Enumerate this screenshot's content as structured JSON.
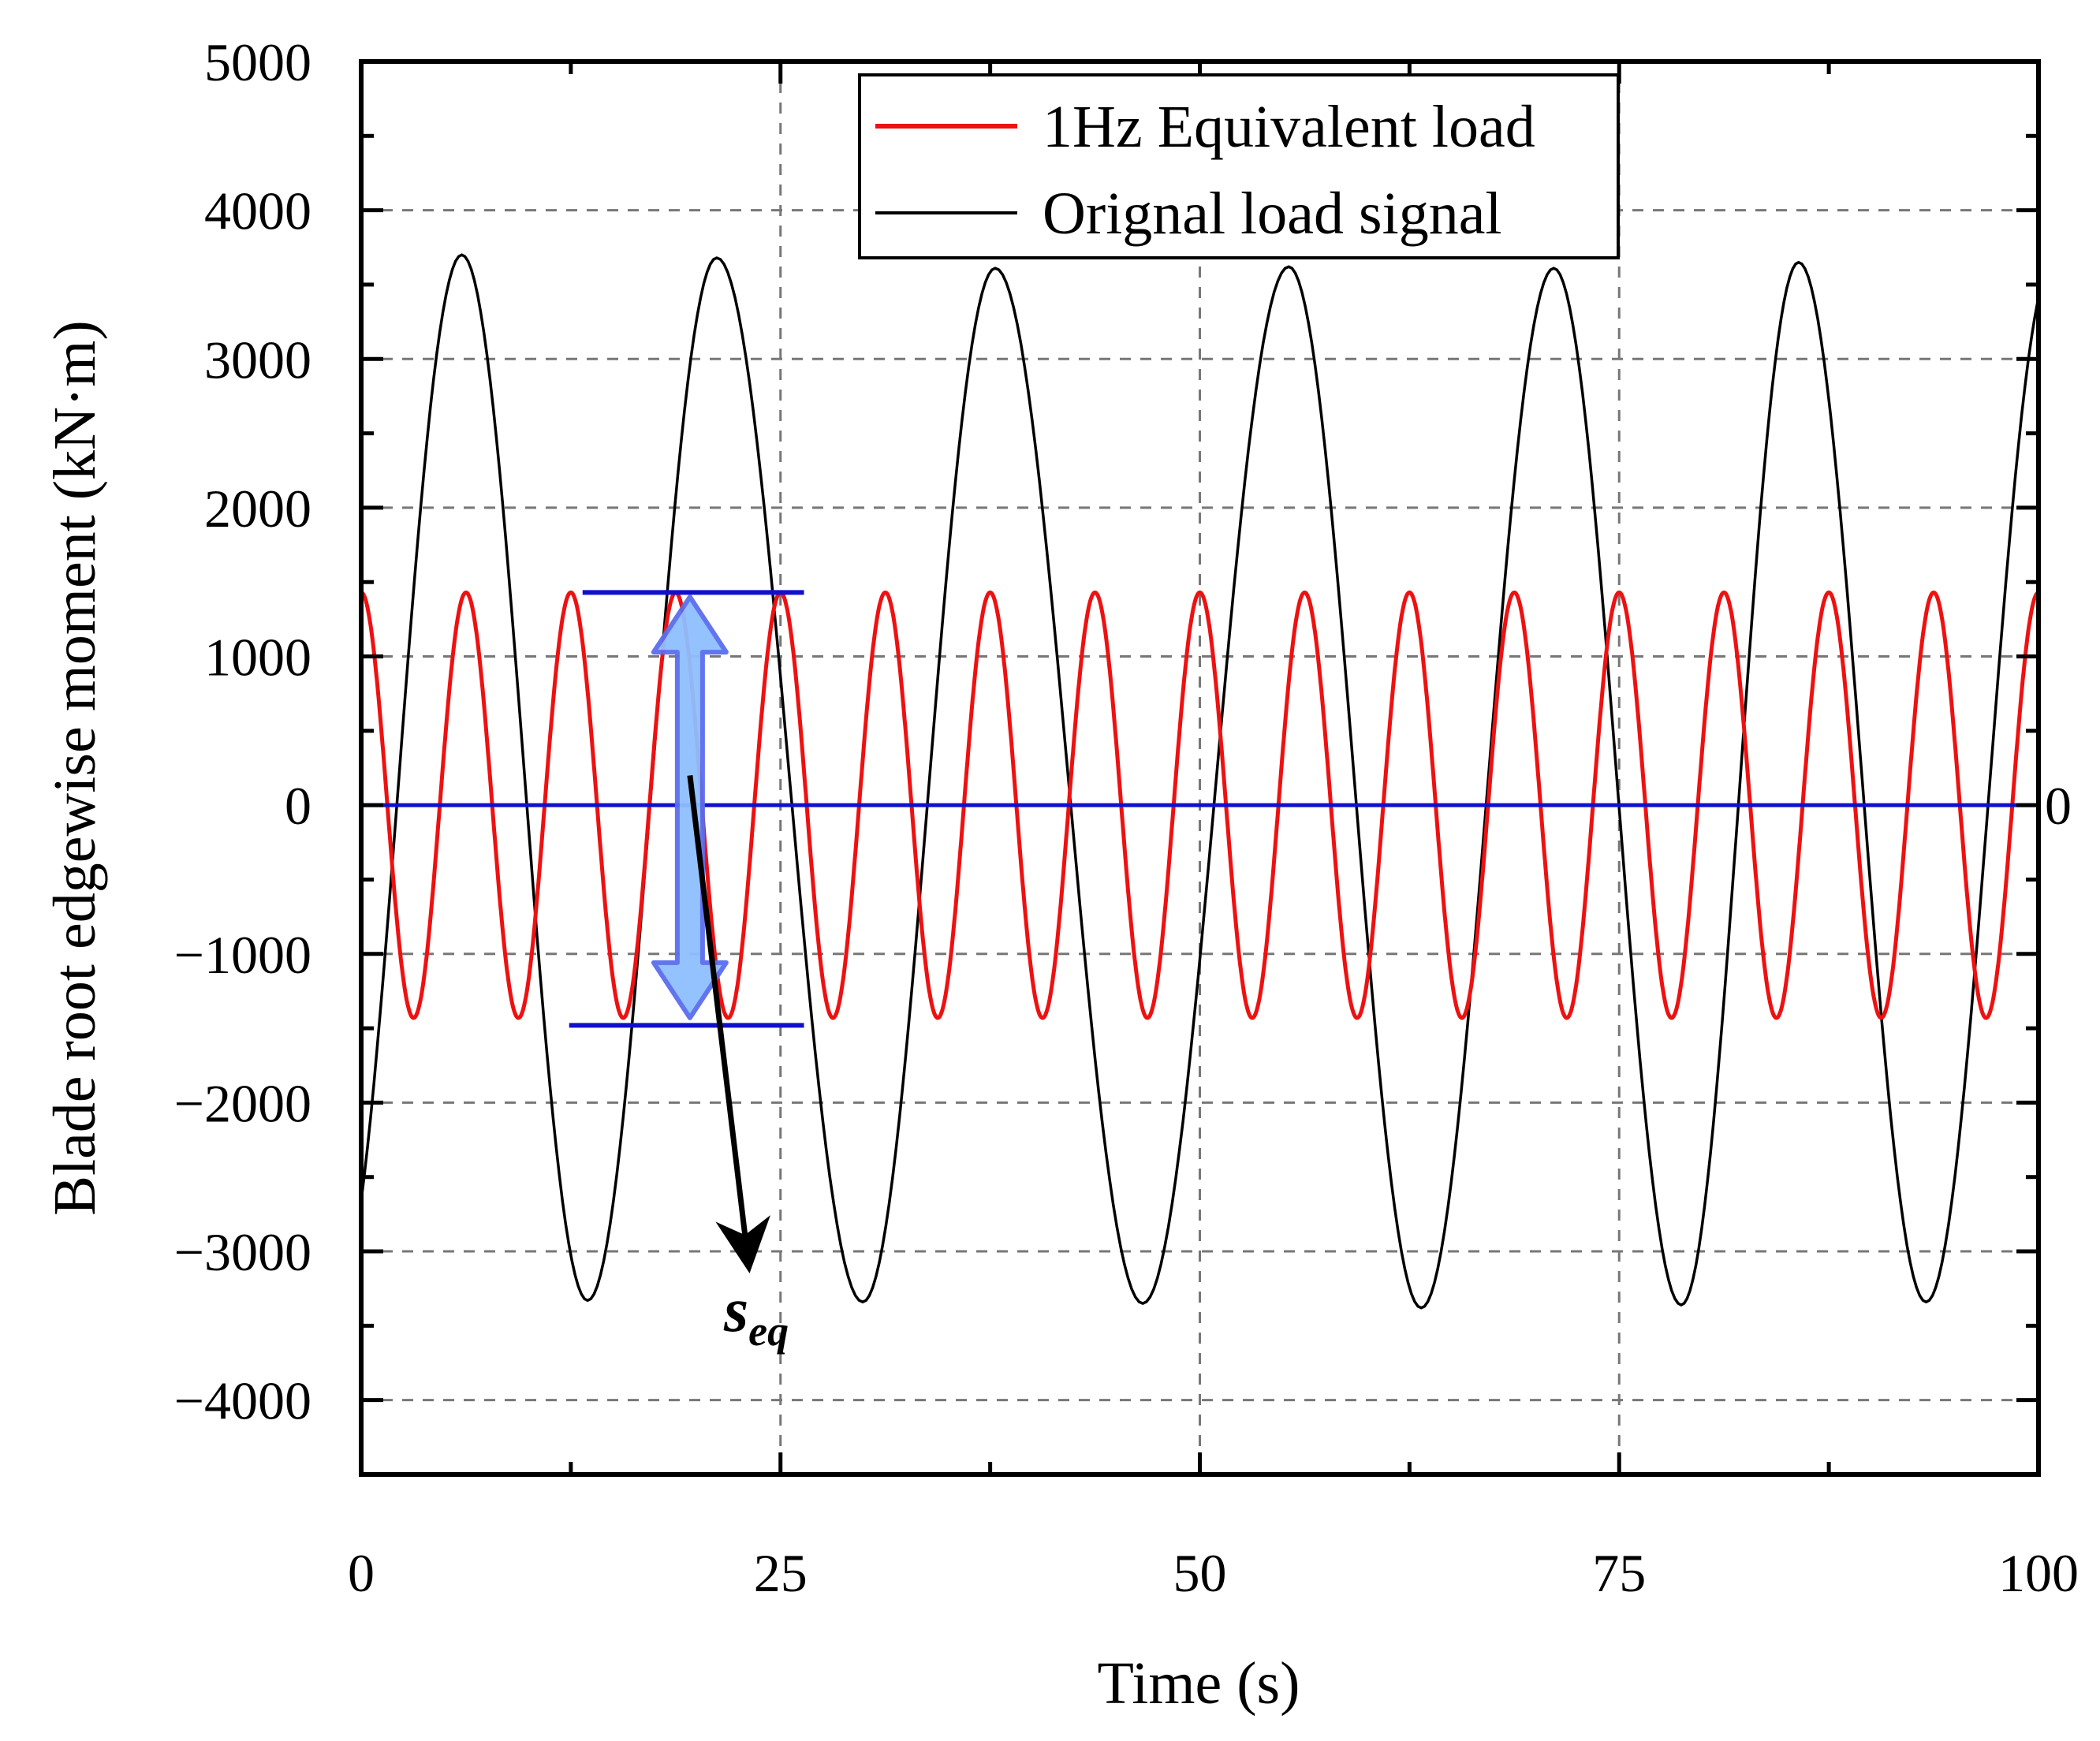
{
  "chart_data": {
    "type": "line",
    "xlabel": "Time (s)",
    "ylabel": "Blade root edgewise moment (kN·m)",
    "xlim": [
      0,
      100
    ],
    "ylim": [
      -4500,
      5000
    ],
    "xticks": [
      0,
      25,
      50,
      75,
      100
    ],
    "xtick_labels": [
      "0",
      "25",
      "50",
      "75",
      "100"
    ],
    "yticks": [
      -4000,
      -3000,
      -2000,
      -1000,
      0,
      1000,
      2000,
      3000,
      4000,
      5000
    ],
    "ytick_labels": [
      "−4000",
      "−3000",
      "−2000",
      "−1000",
      "0",
      "1000",
      "2000",
      "3000",
      "4000",
      "5000"
    ],
    "grid": true,
    "legend_position": "top-center",
    "series": [
      {
        "name": "1Hz Equivalent load",
        "color": "#ee1111",
        "function": "sine",
        "amplitude": 1430,
        "offset": 0,
        "period_s": 6.25,
        "phase_deg": 90
      },
      {
        "name": "Orignal load signal",
        "color": "#000000",
        "function": "sine",
        "peaks": [
          [
            6.0,
            3700
          ],
          [
            21.2,
            3680
          ],
          [
            37.8,
            3610
          ],
          [
            55.3,
            3620
          ],
          [
            71.1,
            3610
          ],
          [
            85.7,
            3650
          ]
        ],
        "troughs": [
          [
            13.5,
            -3330
          ],
          [
            29.9,
            -3340
          ],
          [
            46.6,
            -3350
          ],
          [
            63.2,
            -3380
          ],
          [
            78.7,
            -3360
          ],
          [
            93.3,
            -3340
          ]
        ],
        "start_value": -2650,
        "end_value": 3650
      },
      {
        "name": "zero reference",
        "color": "#1010cc",
        "y": 0,
        "x_range": [
          0,
          100
        ]
      }
    ],
    "annotations": {
      "upper_level": {
        "y": 1430,
        "x_range": [
          13.2,
          26.4
        ],
        "color": "#1010cc"
      },
      "lower_level": {
        "y": -1480,
        "x_range": [
          12.4,
          26.4
        ],
        "color": "#1010cc"
      },
      "range_arrow": {
        "x": 19.6,
        "y_range": [
          -1430,
          1400
        ],
        "color": "#8fbfff"
      },
      "label_arrow": {
        "from": [
          19.6,
          200
        ],
        "to": [
          23.0,
          -3000
        ]
      },
      "label": "s",
      "label_subscript": "eq",
      "right_edge_label": "0"
    }
  }
}
